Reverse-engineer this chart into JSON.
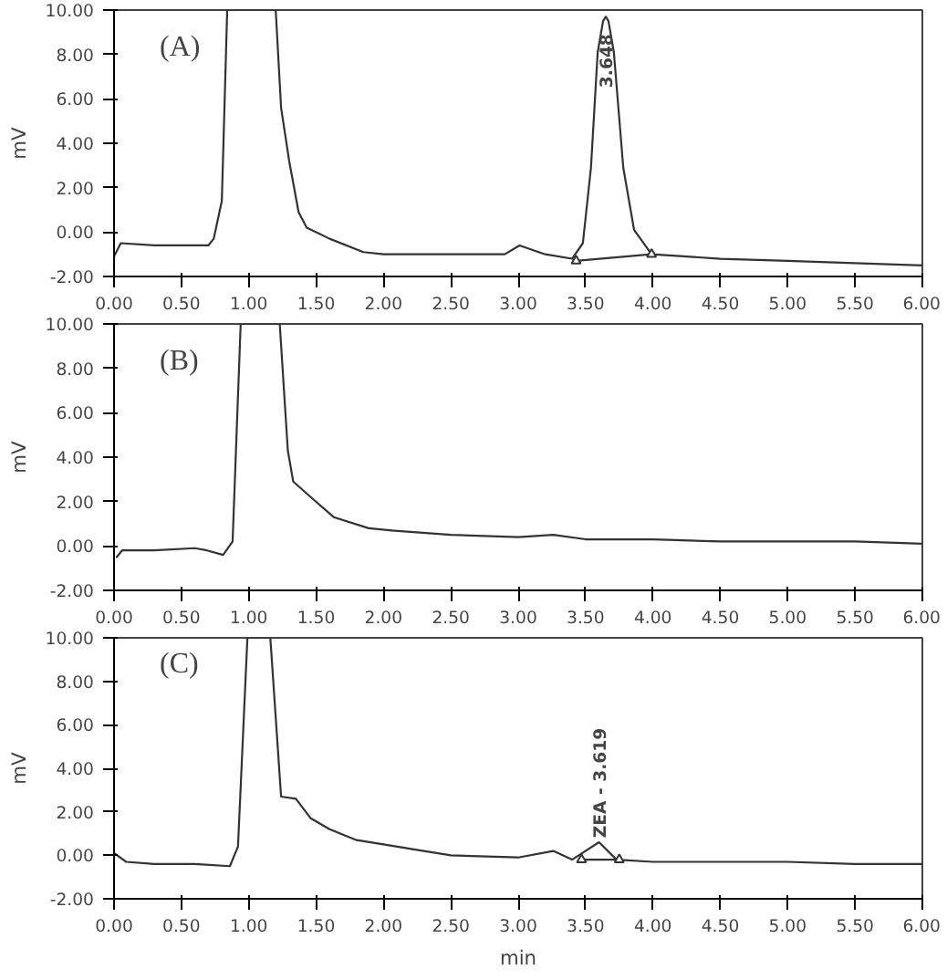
{
  "chart_data": [
    {
      "type": "line",
      "ylabel": "mV",
      "xlim": [
        0,
        6
      ],
      "ylim": [
        -2,
        10
      ],
      "xticks": [
        {
          "value": 0,
          "label": "0.00"
        },
        {
          "value": 0.5,
          "label": "0.50"
        },
        {
          "value": 1,
          "label": "1.00"
        },
        {
          "value": 1.5,
          "label": "1.50"
        },
        {
          "value": 2,
          "label": "2.00"
        },
        {
          "value": 2.5,
          "label": "2.50"
        },
        {
          "value": 3,
          "label": "3.00"
        },
        {
          "value": 3.5,
          "label": "3.50"
        },
        {
          "value": 4,
          "label": "4.00"
        },
        {
          "value": 4.5,
          "label": "4.50"
        },
        {
          "value": 5,
          "label": "5.00"
        },
        {
          "value": 5.5,
          "label": "5.50"
        },
        {
          "value": 6,
          "label": "6.00"
        }
      ],
      "yticks": [
        {
          "value": -2,
          "label": "-2.00"
        },
        {
          "value": 0,
          "label": "0.00"
        },
        {
          "value": 2,
          "label": "2.00"
        },
        {
          "value": 4,
          "label": "4.00"
        },
        {
          "value": 6,
          "label": "6.00"
        },
        {
          "value": 8,
          "label": "8.00"
        },
        {
          "value": 10,
          "label": "10.00"
        }
      ],
      "annotations": [
        "(A)",
        {
          "text": "3.648",
          "x": 3.648,
          "y": 6.5
        }
      ],
      "series": [
        {
          "color": "#333333",
          "x": [
            0,
            0.05,
            0.3,
            0.5,
            0.7,
            0.74,
            0.8,
            0.84,
            1.2,
            1.24,
            1.3,
            1.37,
            1.43,
            1.6,
            1.85,
            2.0,
            2.5,
            2.9,
            3.01,
            3.2,
            3.4,
            3.48,
            3.54,
            3.59,
            3.63,
            3.65,
            3.67,
            3.71,
            3.78,
            3.86,
            3.99,
            4.5,
            5.0,
            5.5,
            6.0
          ],
          "values": [
            -1.1,
            -0.5,
            -0.6,
            -0.6,
            -0.6,
            -0.3,
            1.4,
            10,
            10,
            5.6,
            3.2,
            0.9,
            0.2,
            -0.3,
            -0.9,
            -1.0,
            -1.0,
            -1.0,
            -0.6,
            -1.0,
            -1.2,
            -0.5,
            2.9,
            8.1,
            9.5,
            9.7,
            9.5,
            8.1,
            2.9,
            0.1,
            -1.0,
            -1.2,
            -1.3,
            -1.4,
            -1.5
          ]
        },
        {
          "color": "#333333",
          "marker": "triangle",
          "x": [
            3.43,
            3.99
          ],
          "values": [
            -1.3,
            -1.0
          ]
        }
      ]
    },
    {
      "type": "line",
      "ylabel": "mV",
      "xlim": [
        0,
        6
      ],
      "ylim": [
        -2,
        10
      ],
      "xticks": [
        {
          "value": 0,
          "label": "0.00"
        },
        {
          "value": 0.5,
          "label": "0.50"
        },
        {
          "value": 1,
          "label": "1.00"
        },
        {
          "value": 1.5,
          "label": "1.50"
        },
        {
          "value": 2,
          "label": "2.00"
        },
        {
          "value": 2.5,
          "label": "2.50"
        },
        {
          "value": 3,
          "label": "3.00"
        },
        {
          "value": 3.5,
          "label": "3.50"
        },
        {
          "value": 4,
          "label": "4.00"
        },
        {
          "value": 4.5,
          "label": "4.50"
        },
        {
          "value": 5,
          "label": "5.00"
        },
        {
          "value": 5.5,
          "label": "5.50"
        },
        {
          "value": 6,
          "label": "6.00"
        }
      ],
      "yticks": [
        {
          "value": -2,
          "label": "-2.00"
        },
        {
          "value": 0,
          "label": "0.00"
        },
        {
          "value": 2,
          "label": "2.00"
        },
        {
          "value": 4,
          "label": "4.00"
        },
        {
          "value": 6,
          "label": "6.00"
        },
        {
          "value": 8,
          "label": "8.00"
        },
        {
          "value": 10,
          "label": "10.00"
        }
      ],
      "annotations": [
        "(B)"
      ],
      "series": [
        {
          "color": "#333333",
          "x": [
            0.02,
            0.06,
            0.3,
            0.6,
            0.69,
            0.81,
            0.88,
            0.94,
            1.23,
            1.29,
            1.33,
            1.46,
            1.63,
            1.89,
            2.06,
            2.5,
            3.0,
            3.26,
            3.5,
            4.0,
            4.5,
            5.0,
            5.5,
            6.0
          ],
          "values": [
            -0.5,
            -0.2,
            -0.2,
            -0.1,
            -0.2,
            -0.4,
            0.2,
            10,
            10,
            4.3,
            2.9,
            2.2,
            1.3,
            0.8,
            0.7,
            0.5,
            0.4,
            0.5,
            0.3,
            0.3,
            0.2,
            0.2,
            0.2,
            0.1
          ]
        }
      ]
    },
    {
      "type": "line",
      "ylabel": "mV",
      "xlabel": "min",
      "xlim": [
        0,
        6
      ],
      "ylim": [
        -2,
        10
      ],
      "xticks": [
        {
          "value": 0,
          "label": "0.00"
        },
        {
          "value": 0.5,
          "label": "0.50"
        },
        {
          "value": 1,
          "label": "1.00"
        },
        {
          "value": 1.5,
          "label": "1.50"
        },
        {
          "value": 2,
          "label": "2.00"
        },
        {
          "value": 2.5,
          "label": "2.50"
        },
        {
          "value": 3,
          "label": "3.00"
        },
        {
          "value": 3.5,
          "label": "3.50"
        },
        {
          "value": 4,
          "label": "4.00"
        },
        {
          "value": 4.5,
          "label": "4.50"
        },
        {
          "value": 5,
          "label": "5.00"
        },
        {
          "value": 5.5,
          "label": "5.50"
        },
        {
          "value": 6,
          "label": "6.00"
        }
      ],
      "yticks": [
        {
          "value": -2,
          "label": "-2.00"
        },
        {
          "value": 0,
          "label": "0.00"
        },
        {
          "value": 2,
          "label": "2.00"
        },
        {
          "value": 4,
          "label": "4.00"
        },
        {
          "value": 6,
          "label": "6.00"
        },
        {
          "value": 8,
          "label": "8.00"
        },
        {
          "value": 10,
          "label": "10.00"
        }
      ],
      "annotations": [
        "(C)",
        {
          "text": "ZEA - 3.619",
          "x": 3.619,
          "y": 0.8
        }
      ],
      "series": [
        {
          "color": "#333333",
          "x": [
            0,
            0.09,
            0.3,
            0.6,
            0.86,
            0.92,
            0.99,
            1.16,
            1.24,
            1.35,
            1.46,
            1.6,
            1.8,
            2.0,
            2.3,
            2.5,
            3.0,
            3.26,
            3.4,
            3.6,
            3.73,
            4.0,
            4.5,
            5.0,
            5.5,
            6.0
          ],
          "values": [
            0.1,
            -0.3,
            -0.4,
            -0.4,
            -0.5,
            0.4,
            10,
            10,
            2.7,
            2.6,
            1.7,
            1.2,
            0.7,
            0.5,
            0.2,
            0.0,
            -0.1,
            0.2,
            -0.2,
            0.6,
            -0.2,
            -0.3,
            -0.3,
            -0.3,
            -0.4,
            -0.4
          ]
        },
        {
          "color": "#333333",
          "marker": "triangle",
          "x": [
            3.47,
            3.75
          ],
          "values": [
            -0.2,
            -0.2
          ]
        }
      ]
    }
  ]
}
